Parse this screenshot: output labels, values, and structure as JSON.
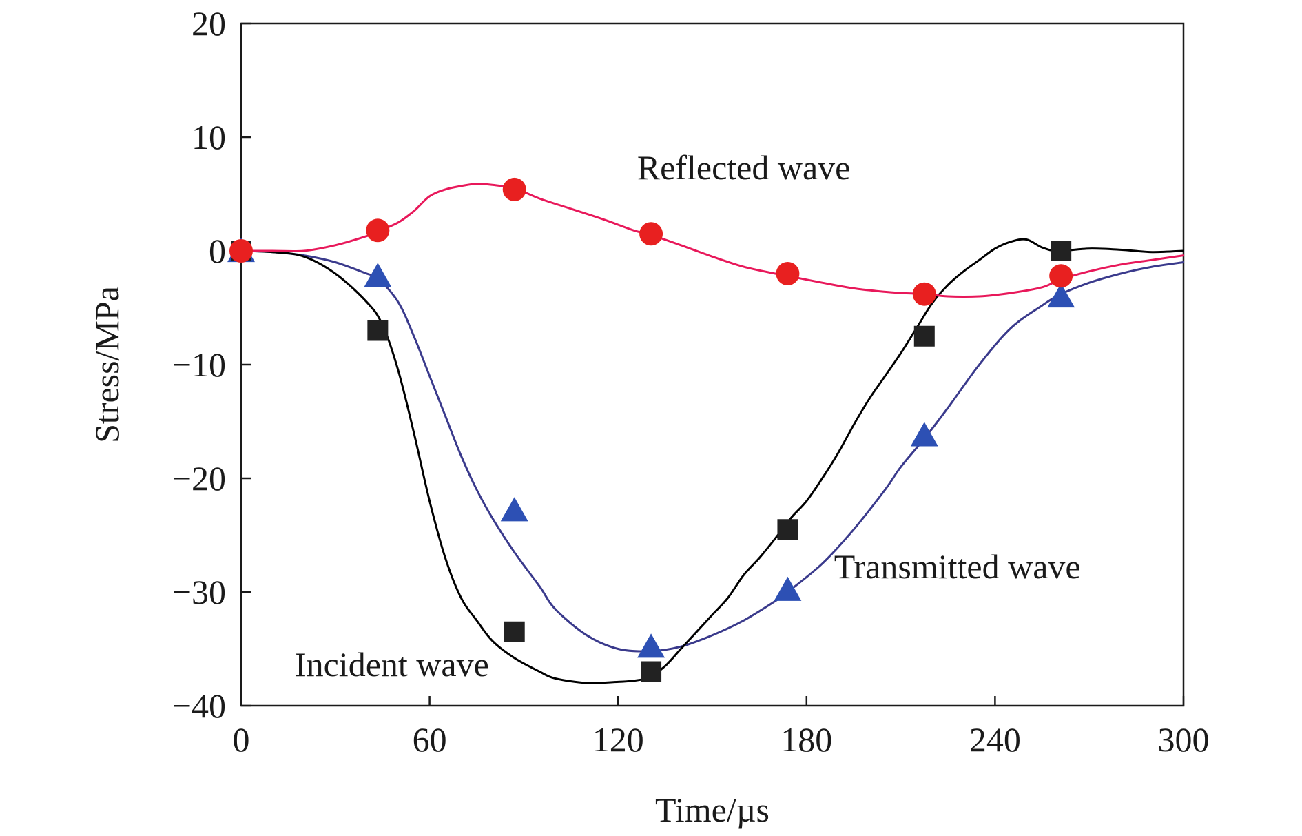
{
  "chart_data": {
    "type": "line",
    "title": "",
    "xlabel": "Time/µs",
    "ylabel": "Stress/MPa",
    "xlim": [
      0,
      300
    ],
    "ylim": [
      -40,
      20
    ],
    "xticks": [
      "0",
      "60",
      "120",
      "180",
      "240",
      "300"
    ],
    "yticks": [
      "20",
      "10",
      "0",
      "−10",
      "−20",
      "−30",
      "−40"
    ],
    "grid": false,
    "legend": "none",
    "series": [
      {
        "name": "Incident wave",
        "color": "#000000",
        "marker": "square",
        "marker_color": "#222222",
        "line_x": [
          0,
          10,
          20,
          30,
          40,
          45,
          50,
          55,
          60,
          65,
          70,
          75,
          80,
          87,
          95,
          100,
          110,
          120,
          125,
          130,
          135,
          140,
          145,
          150,
          155,
          160,
          165,
          170,
          175,
          180,
          185,
          190,
          195,
          200,
          205,
          210,
          215,
          220,
          225,
          230,
          235,
          240,
          245,
          250,
          255,
          260,
          270,
          280,
          290,
          300
        ],
        "line_y": [
          0,
          -0.1,
          -0.5,
          -2.0,
          -4.5,
          -6.5,
          -10.5,
          -16.0,
          -22.0,
          -27.0,
          -30.5,
          -32.5,
          -34.3,
          -35.8,
          -37.0,
          -37.6,
          -38.0,
          -37.9,
          -37.8,
          -37.5,
          -36.5,
          -35.0,
          -33.5,
          -32.0,
          -30.5,
          -28.5,
          -27.0,
          -25.3,
          -23.5,
          -22.0,
          -20.0,
          -17.8,
          -15.3,
          -13.0,
          -11.0,
          -9.0,
          -6.8,
          -4.6,
          -3.0,
          -1.8,
          -0.8,
          0.2,
          0.8,
          1.0,
          0.3,
          0.0,
          0.2,
          0.1,
          -0.1,
          0.0
        ],
        "points_x": [
          0,
          43.5,
          87,
          130.5,
          174,
          217.5,
          261
        ],
        "points_y": [
          0,
          -7,
          -33.5,
          -37,
          -24.5,
          -7.5,
          0
        ]
      },
      {
        "name": "Reflected wave",
        "color": "#e8185a",
        "marker": "circle",
        "marker_color": "#e82020",
        "line_x": [
          0,
          10,
          20,
          30,
          40,
          43.5,
          50,
          55,
          60,
          65,
          70,
          75,
          80,
          87,
          95,
          105,
          115,
          125,
          130.5,
          140,
          150,
          160,
          170,
          174,
          185,
          195,
          205,
          210,
          217.5,
          225,
          235,
          245,
          255,
          261,
          270,
          280,
          290,
          300
        ],
        "line_y": [
          0,
          0,
          0,
          0.5,
          1.3,
          1.7,
          2.5,
          3.5,
          4.8,
          5.4,
          5.7,
          5.9,
          5.8,
          5.5,
          4.6,
          3.7,
          2.8,
          1.8,
          1.4,
          0.5,
          -0.5,
          -1.4,
          -2.0,
          -2.2,
          -2.8,
          -3.3,
          -3.6,
          -3.7,
          -3.8,
          -4.0,
          -4.0,
          -3.7,
          -3.2,
          -2.5,
          -1.8,
          -1.2,
          -0.8,
          -0.4
        ],
        "points_x": [
          0,
          43.5,
          87,
          130.5,
          174,
          217.5,
          261
        ],
        "points_y": [
          0,
          1.8,
          5.4,
          1.5,
          -2.0,
          -3.8,
          -2.2
        ]
      },
      {
        "name": "Transmitted wave",
        "color": "#3a3a8c",
        "marker": "triangle",
        "marker_color": "#2d50b4",
        "line_x": [
          0,
          10,
          20,
          30,
          40,
          43.5,
          50,
          55,
          60,
          65,
          70,
          75,
          80,
          87,
          95,
          100,
          110,
          120,
          130.5,
          140,
          150,
          160,
          170,
          174,
          185,
          195,
          205,
          210,
          217.5,
          225,
          235,
          245,
          255,
          261,
          270,
          280,
          290,
          300
        ],
        "line_y": [
          0,
          -0.1,
          -0.4,
          -1.0,
          -2.0,
          -2.4,
          -4.5,
          -7.5,
          -11.0,
          -14.5,
          -18.0,
          -21.0,
          -23.5,
          -26.5,
          -29.5,
          -31.5,
          -33.8,
          -35.0,
          -35.2,
          -34.8,
          -33.8,
          -32.5,
          -30.8,
          -30.0,
          -27.5,
          -24.5,
          -21.0,
          -19.0,
          -16.5,
          -13.8,
          -10.0,
          -6.8,
          -4.8,
          -3.8,
          -2.8,
          -2.0,
          -1.4,
          -1.0
        ],
        "points_x": [
          0,
          43.5,
          87,
          130.5,
          174,
          217.5,
          261
        ],
        "points_y": [
          0,
          -2.2,
          -22.8,
          -34.8,
          -29.8,
          -16.2,
          -4.0
        ]
      }
    ],
    "annotations": [
      {
        "text": "Reflected wave",
        "x": 160,
        "y": 6.3
      },
      {
        "text": "Transmitted wave",
        "x": 228,
        "y": -28.8
      },
      {
        "text": "Incident wave",
        "x": 48,
        "y": -37.4
      }
    ]
  }
}
